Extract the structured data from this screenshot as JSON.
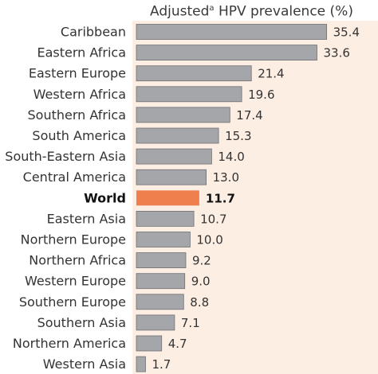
{
  "chart_data": {
    "type": "bar",
    "orientation": "horizontal",
    "title_main": "Adjusted",
    "title_sup": "a",
    "title_rest": " HPV prevalence (%)",
    "categories": [
      "Caribbean",
      "Eastern Africa",
      "Eastern Europe",
      "Western Africa",
      "Southern Africa",
      "South America",
      "South-Eastern Asia",
      "Central America",
      "World",
      "Eastern Asia",
      "Northern Europe",
      "Northern Africa",
      "Western Europe",
      "Southern Europe",
      "Southern Asia",
      "Northern America",
      "Western Asia"
    ],
    "values": [
      35.4,
      33.6,
      21.4,
      19.6,
      17.4,
      15.3,
      14.0,
      13.0,
      11.7,
      10.7,
      10.0,
      9.2,
      9.0,
      8.8,
      7.1,
      4.7,
      1.7
    ],
    "value_labels": [
      "35.4",
      "33.6",
      "21.4",
      "19.6",
      "17.4",
      "15.3",
      "14.0",
      "13.0",
      "11.7",
      "10.7",
      "10.0",
      "9.2",
      "9.0",
      "8.8",
      "7.1",
      "4.7",
      "1.7"
    ],
    "highlight": "World",
    "xlim": [
      0,
      40
    ],
    "grid": false,
    "colors": {
      "bar": "#a5a6aa",
      "bar_stroke": "#6f7074",
      "highlight": "#f07f4e",
      "plot_bg": "#fdeee3"
    }
  }
}
